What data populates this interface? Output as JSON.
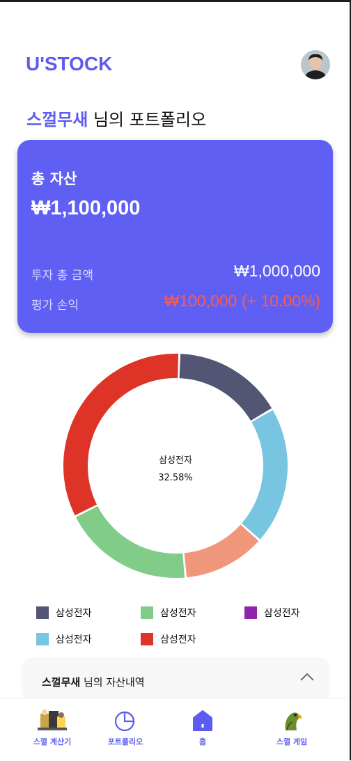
{
  "app": {
    "logo": "U'STOCK"
  },
  "header": {
    "user_name": "스껄무새",
    "title_suffix": " 님의 포트폴리오"
  },
  "summary": {
    "total_label": "총 자산",
    "total_value": "₩1,100,000",
    "invest_label": "투자 총 금액",
    "invest_value": "₩1,000,000",
    "pl_label": "평가 손익",
    "pl_value": "₩100,000  (+ 10.00%)"
  },
  "colors": {
    "accent": "#5c5cf0",
    "card": "#5f5ff3",
    "profit": "#ff5a4a"
  },
  "chart_data": {
    "type": "pie",
    "center_label": "삼성전자",
    "center_value": "32.58%",
    "slices": [
      {
        "name": "삼성전자",
        "color": "#525573",
        "fraction": 0.16
      },
      {
        "name": "삼성전자",
        "color": "#78c5e1",
        "fraction": 0.2
      },
      {
        "name": "삼성전자",
        "color": "#f0977b",
        "fraction": 0.12
      },
      {
        "name": "삼성전자",
        "color": "#81cc89",
        "fraction": 0.19
      },
      {
        "name": "삼성전자",
        "color": "#de3427",
        "fraction": 0.33
      }
    ]
  },
  "legend": [
    {
      "label": "삼성전자",
      "color": "#525573"
    },
    {
      "label": "삼성전자",
      "color": "#81cc89"
    },
    {
      "label": "삼성전자",
      "color": "#8e24aa"
    },
    {
      "label": "삼성전자",
      "color": "#78c5e1"
    },
    {
      "label": "삼성전자",
      "color": "#de3427"
    }
  ],
  "asset_panel": {
    "user_name": "스껄무새",
    "suffix": " 님의 자산내역"
  },
  "nav": [
    {
      "label": "스껄 계산기",
      "icon": "calculator-meme-icon"
    },
    {
      "label": "포트폴리오",
      "icon": "pie-chart-icon"
    },
    {
      "label": "홈",
      "icon": "home-icon"
    },
    {
      "label": "스껄 게임",
      "icon": "parrot-icon"
    }
  ]
}
